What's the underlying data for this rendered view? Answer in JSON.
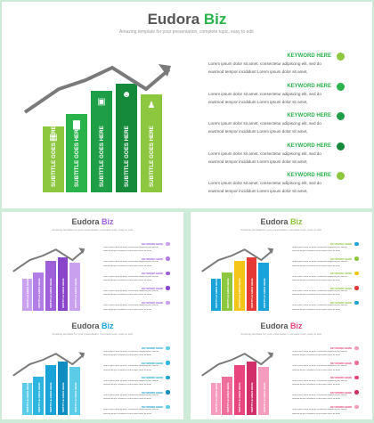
{
  "main": {
    "title_part1": "Eudora",
    "title_part2": "Biz",
    "subtitle": "Amazing template for your presentation, complete topic, easy to edit.",
    "bar_label": "SUBTITLE GOES HERE",
    "keywords": [
      {
        "label": "KEYWORD HERE",
        "color": "#8dc63f"
      },
      {
        "label": "KEYWORD HERE",
        "color": "#2bb34b"
      },
      {
        "label": "KEYWORD HERE",
        "color": "#1e9e46"
      },
      {
        "label": "KEYWORD HERE",
        "color": "#168a3b"
      },
      {
        "label": "KEYWORD HERE",
        "color": "#8dc63f"
      }
    ],
    "desc_line1": "Lorem ipsum dolor sit amet, consectetur adipiscing elit, sed do",
    "desc_line2": "eiusmod tempor incididunt Lorem ipsum dolor sit amet,",
    "bar_colors": [
      "#8dc63f",
      "#2bb34b",
      "#1e9e46",
      "#168a3b",
      "#8dc63f"
    ],
    "accent": "#2bb34b",
    "icons": [
      "stacked-coins-icon",
      "bar-chart-icon",
      "podium-icon",
      "user-settings-icon",
      "team-icon"
    ]
  },
  "thumbnails": [
    {
      "title_part1": "Eudora",
      "title_part2": "Biz",
      "accent": "#a35ddb",
      "bar_colors": [
        "#c8a0ee",
        "#b27ee6",
        "#9f5fd9",
        "#8a44c9",
        "#c8a0ee"
      ],
      "dot_colors": [
        "#c8a0ee",
        "#b27ee6",
        "#9f5fd9",
        "#8a44c9",
        "#c8a0ee"
      ]
    },
    {
      "title_part1": "Eudora",
      "title_part2": "Biz",
      "accent": "#8dc63f",
      "bar_colors": [
        "#1aa3d9",
        "#8dc63f",
        "#f5c518",
        "#e53935",
        "#1aa3d9"
      ],
      "dot_colors": [
        "#1aa3d9",
        "#8dc63f",
        "#f5c518",
        "#e53935",
        "#1aa3d9"
      ]
    },
    {
      "title_part1": "Eudora",
      "title_part2": "Biz",
      "accent": "#1aa3d9",
      "bar_colors": [
        "#5ccbe8",
        "#2bb5e0",
        "#1aa3d9",
        "#0f8cc0",
        "#5ccbe8"
      ],
      "dot_colors": [
        "#5ccbe8",
        "#2bb5e0",
        "#1aa3d9",
        "#0f8cc0",
        "#5ccbe8"
      ]
    },
    {
      "title_part1": "Eudora",
      "title_part2": "Biz",
      "accent": "#e8457f",
      "bar_colors": [
        "#f59bbd",
        "#ef6f9c",
        "#e8457f",
        "#d02f69",
        "#f59bbd"
      ],
      "dot_colors": [
        "#f59bbd",
        "#ef6f9c",
        "#e8457f",
        "#d02f69",
        "#f59bbd"
      ]
    }
  ]
}
